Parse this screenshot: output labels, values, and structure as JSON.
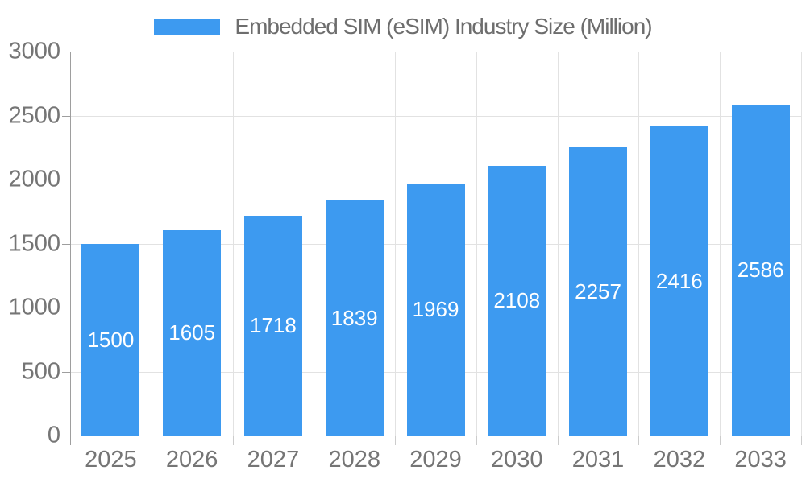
{
  "chart_data": {
    "type": "bar",
    "title": "Embedded SIM (eSIM) Industry Size (Million)",
    "legend": [
      "Embedded SIM (eSIM) Industry Size (Million)"
    ],
    "legend_position": "top",
    "categories": [
      "2025",
      "2026",
      "2027",
      "2028",
      "2029",
      "2030",
      "2031",
      "2032",
      "2033"
    ],
    "values": [
      1500,
      1605,
      1718,
      1839,
      1969,
      2108,
      2257,
      2416,
      2586
    ],
    "xlabel": "",
    "ylabel": "",
    "ylim": [
      0,
      3000
    ],
    "yticks": [
      0,
      500,
      1000,
      1500,
      2000,
      2500,
      3000
    ],
    "grid": true,
    "bar_value_labels_inside": true,
    "colors": {
      "bar": "#3d9af0",
      "bar_value_label": "#ffffff",
      "tick_label": "#757575",
      "title": "#6d6d6d",
      "grid_line": "#e2e2e2",
      "axis_line": "#9e9e9e",
      "x_tick_mark": "#cccccc"
    }
  }
}
